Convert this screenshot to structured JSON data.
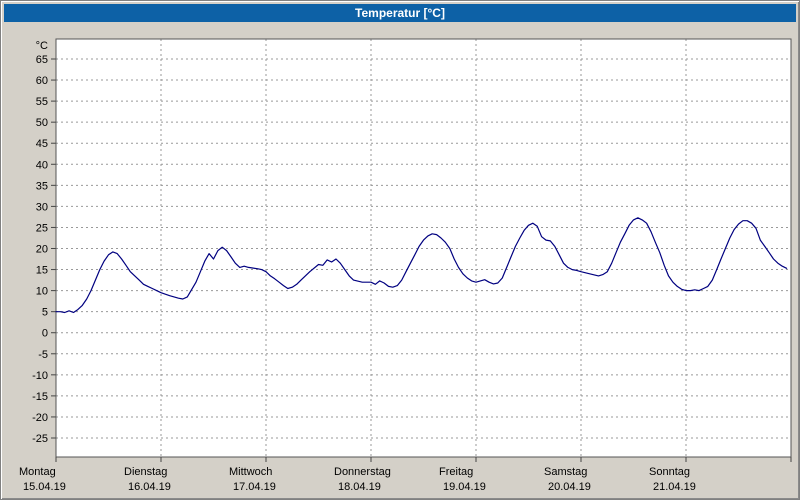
{
  "window": {
    "title": "Temperatur [°C]"
  },
  "colors": {
    "titlebar": "#0d61a6",
    "background": "#d4d0c8",
    "plot_background": "#ffffff",
    "grid": "#999999",
    "axis": "#444444",
    "border": "#555555",
    "line": "#000080"
  },
  "chart_data": {
    "type": "line",
    "title": "Temperatur [°C]",
    "ylabel": "°C",
    "ylim": [
      -25,
      65
    ],
    "ytick_step": 5,
    "yticks": [
      65,
      60,
      55,
      50,
      45,
      40,
      35,
      30,
      25,
      20,
      15,
      10,
      5,
      0,
      -5,
      -10,
      -15,
      -20,
      -25
    ],
    "grid": true,
    "legend": "none",
    "x_axis_unit": "days",
    "days": [
      {
        "label": "Montag",
        "date": "15.04.19"
      },
      {
        "label": "Dienstag",
        "date": "16.04.19"
      },
      {
        "label": "Mittwoch",
        "date": "17.04.19"
      },
      {
        "label": "Donnerstag",
        "date": "18.04.19"
      },
      {
        "label": "Freitag",
        "date": "19.04.19"
      },
      {
        "label": "Samstag",
        "date": "20.04.19"
      },
      {
        "label": "Sonntag",
        "date": "21.04.19"
      }
    ],
    "series_name": "Temperatur",
    "points": [
      [
        0.0,
        5
      ],
      [
        0.042,
        5
      ],
      [
        0.083,
        4.8
      ],
      [
        0.125,
        5.2
      ],
      [
        0.167,
        4.8
      ],
      [
        0.208,
        5.5
      ],
      [
        0.25,
        6.5
      ],
      [
        0.292,
        8
      ],
      [
        0.333,
        10
      ],
      [
        0.375,
        12.5
      ],
      [
        0.417,
        15
      ],
      [
        0.458,
        17
      ],
      [
        0.5,
        18.5
      ],
      [
        0.542,
        19.2
      ],
      [
        0.583,
        18.8
      ],
      [
        0.625,
        17.5
      ],
      [
        0.667,
        16
      ],
      [
        0.708,
        14.5
      ],
      [
        0.75,
        13.5
      ],
      [
        0.792,
        12.5
      ],
      [
        0.833,
        11.5
      ],
      [
        0.875,
        11
      ],
      [
        0.917,
        10.5
      ],
      [
        0.958,
        10
      ],
      [
        1.0,
        9.5
      ],
      [
        1.083,
        8.8
      ],
      [
        1.167,
        8.2
      ],
      [
        1.208,
        8
      ],
      [
        1.25,
        8.5
      ],
      [
        1.333,
        12
      ],
      [
        1.375,
        14.5
      ],
      [
        1.417,
        17
      ],
      [
        1.458,
        18.8
      ],
      [
        1.5,
        17.5
      ],
      [
        1.542,
        19.5
      ],
      [
        1.583,
        20.3
      ],
      [
        1.625,
        19.5
      ],
      [
        1.667,
        18
      ],
      [
        1.708,
        16.5
      ],
      [
        1.75,
        15.5
      ],
      [
        1.792,
        15.8
      ],
      [
        1.833,
        15.5
      ],
      [
        1.917,
        15.2
      ],
      [
        1.958,
        15
      ],
      [
        2.0,
        14.5
      ],
      [
        2.042,
        13.5
      ],
      [
        2.083,
        12.8
      ],
      [
        2.125,
        12
      ],
      [
        2.167,
        11.2
      ],
      [
        2.208,
        10.5
      ],
      [
        2.25,
        10.8
      ],
      [
        2.292,
        11.5
      ],
      [
        2.333,
        12.5
      ],
      [
        2.417,
        14.5
      ],
      [
        2.5,
        16.2
      ],
      [
        2.542,
        16
      ],
      [
        2.583,
        17.3
      ],
      [
        2.625,
        16.8
      ],
      [
        2.667,
        17.5
      ],
      [
        2.708,
        16.5
      ],
      [
        2.75,
        15
      ],
      [
        2.792,
        13.5
      ],
      [
        2.833,
        12.5
      ],
      [
        2.917,
        12
      ],
      [
        2.958,
        12
      ],
      [
        3.0,
        12
      ],
      [
        3.042,
        11.5
      ],
      [
        3.083,
        12.3
      ],
      [
        3.125,
        11.8
      ],
      [
        3.167,
        11
      ],
      [
        3.208,
        10.8
      ],
      [
        3.25,
        11.2
      ],
      [
        3.292,
        12.5
      ],
      [
        3.333,
        14.5
      ],
      [
        3.375,
        16.5
      ],
      [
        3.417,
        18.5
      ],
      [
        3.458,
        20.5
      ],
      [
        3.5,
        22
      ],
      [
        3.542,
        23
      ],
      [
        3.583,
        23.5
      ],
      [
        3.625,
        23.3
      ],
      [
        3.667,
        22.5
      ],
      [
        3.708,
        21.5
      ],
      [
        3.75,
        20
      ],
      [
        3.792,
        17.5
      ],
      [
        3.833,
        15.5
      ],
      [
        3.875,
        14
      ],
      [
        3.917,
        13
      ],
      [
        3.958,
        12.3
      ],
      [
        4.0,
        12
      ],
      [
        4.042,
        12.3
      ],
      [
        4.083,
        12.6
      ],
      [
        4.125,
        12
      ],
      [
        4.167,
        11.6
      ],
      [
        4.208,
        11.8
      ],
      [
        4.25,
        13
      ],
      [
        4.292,
        15.5
      ],
      [
        4.333,
        18
      ],
      [
        4.375,
        20.5
      ],
      [
        4.417,
        22.5
      ],
      [
        4.458,
        24.3
      ],
      [
        4.5,
        25.5
      ],
      [
        4.542,
        26
      ],
      [
        4.583,
        25.3
      ],
      [
        4.625,
        22.8
      ],
      [
        4.667,
        22
      ],
      [
        4.708,
        21.8
      ],
      [
        4.75,
        20.5
      ],
      [
        4.792,
        18.5
      ],
      [
        4.833,
        16.5
      ],
      [
        4.875,
        15.5
      ],
      [
        4.917,
        15
      ],
      [
        4.958,
        14.8
      ],
      [
        5.0,
        14.5
      ],
      [
        5.083,
        14
      ],
      [
        5.167,
        13.5
      ],
      [
        5.208,
        13.8
      ],
      [
        5.25,
        14.5
      ],
      [
        5.292,
        16.5
      ],
      [
        5.333,
        19
      ],
      [
        5.375,
        21.5
      ],
      [
        5.417,
        23.5
      ],
      [
        5.458,
        25.5
      ],
      [
        5.5,
        26.8
      ],
      [
        5.542,
        27.3
      ],
      [
        5.583,
        26.8
      ],
      [
        5.625,
        26
      ],
      [
        5.667,
        24
      ],
      [
        5.708,
        21.5
      ],
      [
        5.75,
        19
      ],
      [
        5.792,
        16
      ],
      [
        5.833,
        13.5
      ],
      [
        5.875,
        12
      ],
      [
        5.917,
        11
      ],
      [
        5.958,
        10.3
      ],
      [
        6.0,
        10
      ],
      [
        6.042,
        10
      ],
      [
        6.083,
        10.2
      ],
      [
        6.125,
        10
      ],
      [
        6.167,
        10.5
      ],
      [
        6.208,
        11
      ],
      [
        6.25,
        12.5
      ],
      [
        6.292,
        15
      ],
      [
        6.333,
        17.5
      ],
      [
        6.375,
        20
      ],
      [
        6.417,
        22.5
      ],
      [
        6.458,
        24.5
      ],
      [
        6.5,
        25.8
      ],
      [
        6.542,
        26.6
      ],
      [
        6.583,
        26.6
      ],
      [
        6.625,
        26
      ],
      [
        6.667,
        24.8
      ],
      [
        6.708,
        22
      ],
      [
        6.75,
        20.5
      ],
      [
        6.792,
        19
      ],
      [
        6.833,
        17.5
      ],
      [
        6.875,
        16.5
      ],
      [
        6.917,
        15.8
      ],
      [
        6.958,
        15.3
      ]
    ]
  }
}
